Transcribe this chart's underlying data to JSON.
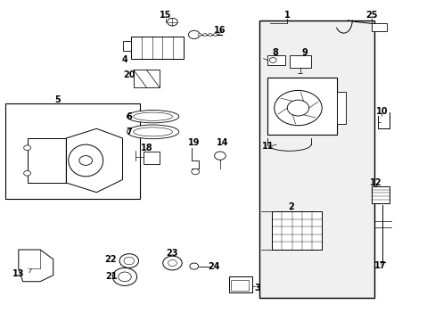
{
  "title": "",
  "background_color": "#ffffff",
  "fig_width": 4.89,
  "fig_height": 3.6,
  "dpi": 100
}
